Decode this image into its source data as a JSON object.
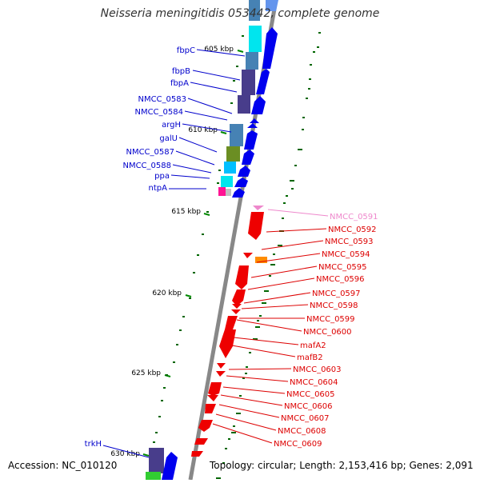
{
  "title": "Neisseria meningitidis 053442, complete genome",
  "accession": "Accession: NC_010120",
  "topology": "Topology: circular; Length: 2,153,416 bp; Genes: 2,091",
  "colors": {
    "forward_label": "#0000cc",
    "reverse_label": "#dd0000",
    "highlight_label": "#ee88cc",
    "gc_skew": "#006600"
  },
  "kbp_ticks": [
    "605 kbp",
    "610 kbp",
    "615 kbp",
    "620 kbp",
    "625 kbp",
    "630 kbp"
  ],
  "forward_genes": [
    "fbpC",
    "fbpB",
    "fbpA",
    "NMCC_0583",
    "NMCC_0584",
    "argH",
    "galU",
    "NMCC_0587",
    "NMCC_0588",
    "ppa",
    "ntpA",
    "trkH"
  ],
  "reverse_genes": [
    "NMCC_0591",
    "NMCC_0592",
    "NMCC_0593",
    "NMCC_0594",
    "NMCC_0595",
    "NMCC_0596",
    "NMCC_0597",
    "NMCC_0598",
    "NMCC_0599",
    "NMCC_0600",
    "mafA2",
    "mafB2",
    "NMCC_0603",
    "NMCC_0604",
    "NMCC_0605",
    "NMCC_0606",
    "NMCC_0607",
    "NMCC_0608",
    "NMCC_0609"
  ]
}
